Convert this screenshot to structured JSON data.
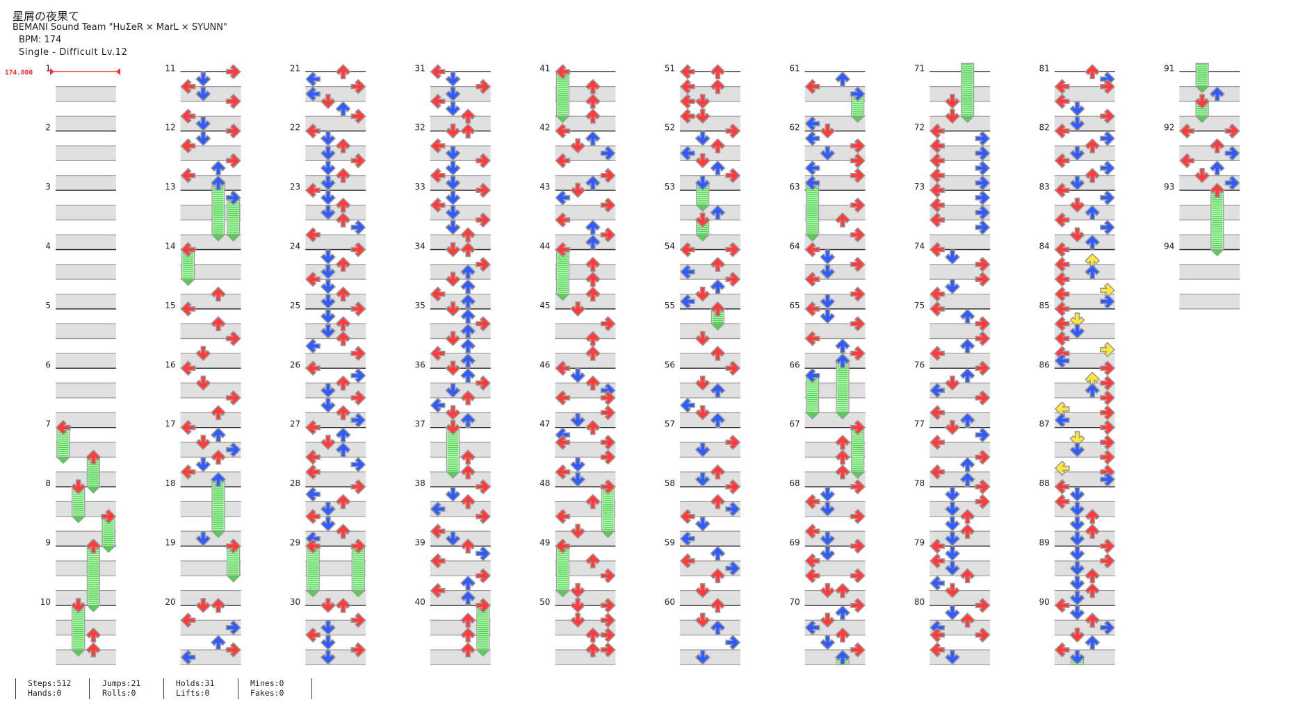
{
  "song": {
    "title": "星屑の夜果て",
    "artist": "BEMANI Sound Team \"HuΣeR × MarL × SYUNN\"",
    "bpm_label": "BPM: 174",
    "chart_label": "Single - Difficult Lv.12"
  },
  "bpm_marker": "174.000",
  "stats": {
    "row1": [
      "Steps:512",
      "Jumps:21",
      "Holds:31",
      "Mines:0"
    ],
    "row2": [
      "Hands:0",
      "Rolls:0",
      "Lifts:0",
      "Fakes:0"
    ]
  },
  "colors": {
    "quarter": "#ff3b3b",
    "eighth": "#2f5bff",
    "sixteenth": "#ffe83a",
    "hold_body": "#b6f5b6",
    "hold_stripe": "#4fd24f",
    "bpm_change": "#ff2a2a"
  },
  "lanes": [
    "left",
    "down",
    "up",
    "right"
  ],
  "measures": [
    {
      "n": "1",
      "div": 8,
      "notes": ""
    },
    {
      "n": "2",
      "div": 8,
      "notes": ""
    },
    {
      "n": "3",
      "div": 8,
      "notes": ""
    },
    {
      "n": "4",
      "div": 8,
      "notes": ""
    },
    {
      "n": "5",
      "div": 8,
      "notes": ""
    },
    {
      "n": "6",
      "div": 8,
      "notes": ""
    },
    {
      "n": "7",
      "div": 8,
      "notes": "L0h L4e U4h"
    },
    {
      "n": "8",
      "div": 8,
      "notes": "U0e D0h D4e R4h"
    },
    {
      "n": "9",
      "div": 8,
      "notes": "R0e U0h"
    },
    {
      "n": "10",
      "div": 8,
      "notes": "U0e D0h U4 D6e U6"
    },
    {
      "n": "11",
      "div": 8,
      "notes": "R0 D1 L2 D3 R4 L6 D7"
    },
    {
      "n": "12",
      "div": 8,
      "notes": "R0 D1 L2 R4 U5 L6 U7h"
    },
    {
      "n": "13",
      "div": 8,
      "notes": "R1h U6e R6e"
    },
    {
      "n": "14",
      "div": 8,
      "notes": "L0h L4e U6"
    },
    {
      "n": "15",
      "div": 8,
      "notes": "L0 U2 R4 D6"
    },
    {
      "n": "16",
      "div": 8,
      "notes": "L0 D2 R4 U6"
    },
    {
      "n": "17",
      "div": 8,
      "notes": "L0 U1 D2 R3 U4 D5 L6 U7h"
    },
    {
      "n": "18",
      "div": 8,
      "notes": "U6e D7"
    },
    {
      "n": "19",
      "div": 8,
      "notes": "R0h R4e"
    },
    {
      "n": "20",
      "div": 8,
      "notes": "D0 U0 L2 R3 U5 R6 L7"
    },
    {
      "n": "21",
      "div": 8,
      "notes": "U0 L1 R2 L3 D4 U5 R6"
    },
    {
      "n": "22",
      "div": 8,
      "notes": "L0 D1 U2 D3 R4 D5 U6 D7"
    },
    {
      "n": "23",
      "div": 8,
      "notes": "L0 D1 U2 D3 U4 R5 L6"
    },
    {
      "n": "24",
      "div": 8,
      "notes": "R0 D1 U2 D3 L4 D5 U6 D7"
    },
    {
      "n": "25",
      "div": 8,
      "notes": "R0 D1 U2 D3 U4 L5 R6"
    },
    {
      "n": "26",
      "div": 8,
      "notes": "L0 R1 U2 D3 R4 D5 U6 R7"
    },
    {
      "n": "27",
      "div": 8,
      "notes": "L0 U1 D2 U3 L4 R5 L6"
    },
    {
      "n": "28",
      "div": 8,
      "notes": "R0 L1 U2 D3 L4 D5 U6 L7"
    },
    {
      "n": "29",
      "div": 8,
      "notes": "L0h R0h L6e R6e"
    },
    {
      "n": "30",
      "div": 8,
      "notes": "D0 U0 R2 D3 L4 D5 R6 D7"
    },
    {
      "n": "31",
      "div": 8,
      "notes": "L0 D1 R2 D3 L4 D5 U6"
    },
    {
      "n": "32",
      "div": 8,
      "notes": "D0 U0 L2 D3 R4 D5 L6 D7"
    },
    {
      "n": "33",
      "div": 8,
      "notes": "R0 D1 L2 D3 R4 D5 U6"
    },
    {
      "n": "34",
      "div": 8,
      "notes": "D0 U0 R2 U3 D4 U5 L6 U7"
    },
    {
      "n": "35",
      "div": 8,
      "notes": "D0 U1 R2 U3 D4 U5 L6 U7"
    },
    {
      "n": "36",
      "div": 8,
      "notes": "D0 U1 R2 D3 U4 L5 D6 U7"
    },
    {
      "n": "37",
      "div": 8,
      "notes": "D0h U4 D6e U6"
    },
    {
      "n": "38",
      "div": 8,
      "notes": "R0 D1 U2 L3 R4 L6 D7"
    },
    {
      "n": "39",
      "div": 8,
      "notes": "U0 R1 L2 R4 U5 L6 U7"
    },
    {
      "n": "40",
      "div": 8,
      "notes": "R0h U2 U4 U6 R6e"
    },
    {
      "n": "41",
      "div": 8,
      "notes": "L0h U2 U4 L6e U6"
    },
    {
      "n": "42",
      "div": 8,
      "notes": "L0 U1 D2 R3 L4 R6 U7"
    },
    {
      "n": "43",
      "div": 8,
      "notes": "D0 L1 R2 L4 U5 R6 U7"
    },
    {
      "n": "44",
      "div": 8,
      "notes": "L0h U2 U4 L6e U6"
    },
    {
      "n": "45",
      "div": 8,
      "notes": "D0 R2 U4 U6"
    },
    {
      "n": "46",
      "div": 8,
      "notes": "L0 D1 U2 R3 L4 R4 R6 D7"
    },
    {
      "n": "47",
      "div": 8,
      "notes": "U0 L1 L2 R2 R4 D5 L6 D7"
    },
    {
      "n": "48",
      "div": 8,
      "notes": "R0h U2 L4 D6 R6e"
    },
    {
      "n": "49",
      "div": 8,
      "notes": "L0h U2 R4 L6e D6"
    },
    {
      "n": "50",
      "div": 8,
      "notes": "D0 R0 D2 R2 U4 R4 U6 R6"
    },
    {
      "n": "51",
      "div": 8,
      "notes": "L0 U0 L2 U2 L4 D4 L6 D6"
    },
    {
      "n": "52",
      "div": 8,
      "notes": "R0 D1 U2 L3 D4 U5 R6 D7h"
    },
    {
      "n": "53",
      "div": 8,
      "notes": "D2e U3 D4h D6e"
    },
    {
      "n": "54",
      "div": 8,
      "notes": "L0 R0 U2 L3 R4 U5 D6 L7"
    },
    {
      "n": "55",
      "div": 8,
      "notes": "U0h U2e D4 U6"
    },
    {
      "n": "56",
      "div": 8,
      "notes": "R0 D2 U3 L5 D6 U7"
    },
    {
      "n": "57",
      "div": 8,
      "notes": "R2 D3 U6 D7"
    },
    {
      "n": "58",
      "div": 8,
      "notes": "R0 U2 R3 L4 D5 L7"
    },
    {
      "n": "59",
      "div": 8,
      "notes": "U1 L2 R3 U4 D6"
    },
    {
      "n": "60",
      "div": 8,
      "notes": "U0 D2 U3 R5 D7"
    },
    {
      "n": "61",
      "div": 8,
      "notes": "U1 L2 R3h R6e L7"
    },
    {
      "n": "62",
      "div": 8,
      "notes": "D0 L1 R2 D3 R4 L5 R6 L7h"
    },
    {
      "n": "63",
      "div": 8,
      "notes": "R2 U4 L6e R6"
    },
    {
      "n": "64",
      "div": 8,
      "notes": "L0 D1 R2 D3 L4 R6 D7"
    },
    {
      "n": "65",
      "div": 8,
      "notes": "L0 D1 R2 L4 U5 R6 U7h"
    },
    {
      "n": "66",
      "div": 8,
      "notes": "L1h L6e U6e"
    },
    {
      "n": "67",
      "div": 8,
      "notes": "R0h U2 U4 U6 R6e"
    },
    {
      "n": "68",
      "div": 8,
      "notes": "R0 D1 L2 D3 R4 L6 D7"
    },
    {
      "n": "69",
      "div": 8,
      "notes": "R0 D1 L2 L4 R4 D6 U6"
    },
    {
      "n": "70",
      "div": 8,
      "notes": "R0 U1 D2 L3 U4 D5 R6 U7h"
    },
    {
      "n": "71",
      "div": 8,
      "notes": "D4 U6e D6"
    },
    {
      "n": "72",
      "div": 8,
      "notes": "L0 R1 L2 R3 L4 R5 L6 R7"
    },
    {
      "n": "73",
      "div": 8,
      "notes": "L0 R1 L2 R3 L4 R5"
    },
    {
      "n": "74",
      "div": 8,
      "notes": "L0 D1 R2 R4 D5 L6"
    },
    {
      "n": "75",
      "div": 8,
      "notes": "L0 U1 R2 R4 U5 L6"
    },
    {
      "n": "76",
      "div": 8,
      "notes": "R0 U1 D2 L3 R4 L6 U7"
    },
    {
      "n": "77",
      "div": 8,
      "notes": "D0 R1 L2 R4 U5 L6 U7"
    },
    {
      "n": "78",
      "div": 8,
      "notes": "R0 D1 R2 D3 U4 D5 U6 D7"
    },
    {
      "n": "79",
      "div": 8,
      "notes": "L0 D1 L2 D3 U4 L5 D6"
    },
    {
      "n": "80",
      "div": 8,
      "notes": "R0 D1 U2 L3 L4 R4 L6 D7"
    },
    {
      "n": "81",
      "div": 8,
      "notes": "U0 R1 L2 R2 L4 D5 R6 D7"
    },
    {
      "n": "82",
      "div": 8,
      "notes": "L0 R1 U2 D3 L4 R5 U6 D7"
    },
    {
      "n": "83",
      "div": 8,
      "notes": "L0 R1 D2 U3 L4 R5 D6 U7"
    },
    {
      "n": "84",
      "div": 16,
      "notes": "L0 U3 L4 U6 L8 R11 L12 R14"
    },
    {
      "n": "85",
      "div": 16,
      "notes": "L0 D3 L4 D6 L8 R11 L12 L14"
    },
    {
      "n": "86",
      "div": 16,
      "notes": "R0 U3 R4 U6 R8 L11 R12 L14"
    },
    {
      "n": "87",
      "div": 16,
      "notes": "R0 D3 R4 D6 R8 L11 R12 R14"
    },
    {
      "n": "88",
      "div": 8,
      "notes": "L0 D1 L2 D3 U4 D5 U6 D7"
    },
    {
      "n": "89",
      "div": 8,
      "notes": "R0 D1 R2 D3 U4 D5 U6 D7"
    },
    {
      "n": "90",
      "div": 8,
      "notes": "L0 D1 U2 R3 D4 U5 L6 D7h"
    },
    {
      "n": "91",
      "div": 8,
      "notes": "D2e U3 D4h D6e"
    },
    {
      "n": "92",
      "div": 8,
      "notes": "L0 R0 U2 R3 L4 U5 D6 R7"
    },
    {
      "n": "93",
      "div": 8,
      "notes": "U0h"
    },
    {
      "n": "94",
      "div": 8,
      "notes": "U0e"
    }
  ]
}
